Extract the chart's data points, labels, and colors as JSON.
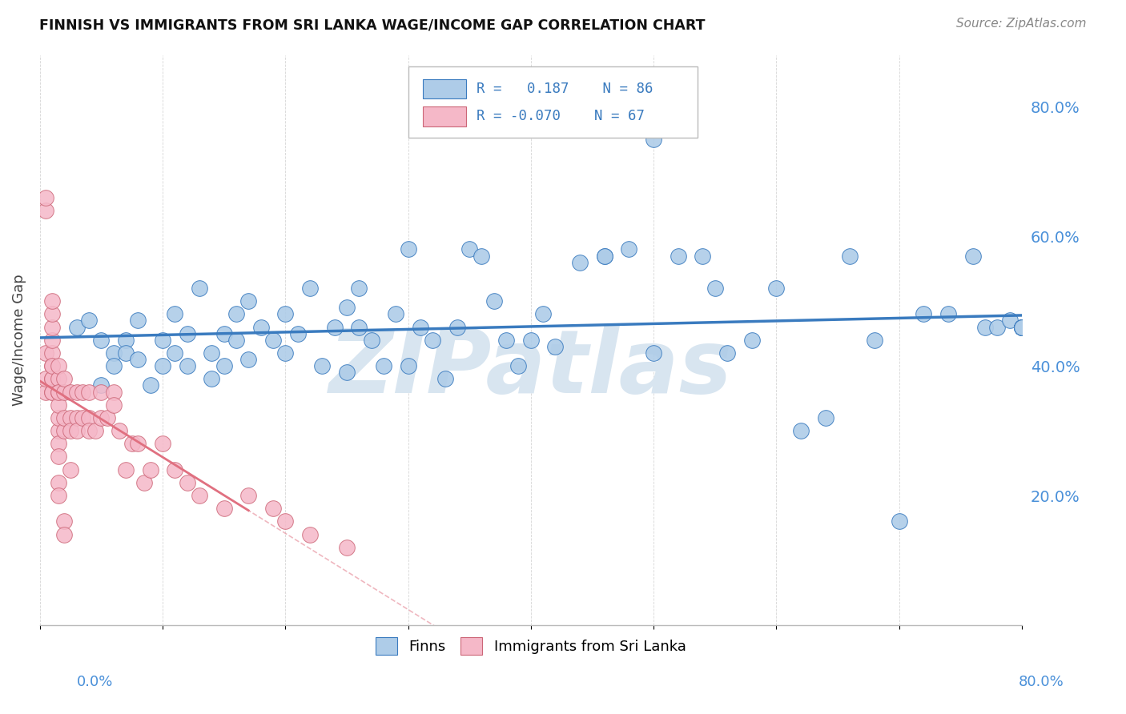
{
  "title": "FINNISH VS IMMIGRANTS FROM SRI LANKA WAGE/INCOME GAP CORRELATION CHART",
  "source": "Source: ZipAtlas.com",
  "ylabel": "Wage/Income Gap",
  "xlim": [
    0.0,
    0.8
  ],
  "ylim": [
    0.0,
    0.88
  ],
  "yticks_right": [
    0.2,
    0.4,
    0.6,
    0.8
  ],
  "ytick_labels_right": [
    "20.0%",
    "40.0%",
    "60.0%",
    "80.0%"
  ],
  "xticks": [
    0.0,
    0.1,
    0.2,
    0.3,
    0.4,
    0.5,
    0.6,
    0.7,
    0.8
  ],
  "color_finns": "#aecce8",
  "color_srilanka": "#f5b8c8",
  "trendline_finns": "#3a7bbf",
  "trendline_srilanka": "#e07080",
  "watermark": "ZIPatlas",
  "watermark_color": "#d8e5f0",
  "finns_x": [
    0.03,
    0.04,
    0.05,
    0.05,
    0.06,
    0.06,
    0.07,
    0.07,
    0.08,
    0.08,
    0.09,
    0.1,
    0.1,
    0.11,
    0.11,
    0.12,
    0.12,
    0.13,
    0.14,
    0.14,
    0.15,
    0.15,
    0.16,
    0.16,
    0.17,
    0.17,
    0.18,
    0.19,
    0.2,
    0.2,
    0.21,
    0.22,
    0.23,
    0.24,
    0.25,
    0.25,
    0.26,
    0.26,
    0.27,
    0.28,
    0.29,
    0.3,
    0.3,
    0.31,
    0.32,
    0.33,
    0.34,
    0.35,
    0.36,
    0.37,
    0.38,
    0.39,
    0.4,
    0.41,
    0.42,
    0.44,
    0.46,
    0.46,
    0.48,
    0.5,
    0.5,
    0.52,
    0.54,
    0.55,
    0.56,
    0.58,
    0.6,
    0.62,
    0.64,
    0.66,
    0.68,
    0.7,
    0.72,
    0.74,
    0.76,
    0.77,
    0.78,
    0.79,
    0.8,
    0.8,
    0.8,
    0.8,
    0.8,
    0.8,
    0.8,
    0.8
  ],
  "finns_y": [
    0.46,
    0.47,
    0.44,
    0.37,
    0.42,
    0.4,
    0.44,
    0.42,
    0.47,
    0.41,
    0.37,
    0.44,
    0.4,
    0.48,
    0.42,
    0.4,
    0.45,
    0.52,
    0.42,
    0.38,
    0.45,
    0.4,
    0.48,
    0.44,
    0.5,
    0.41,
    0.46,
    0.44,
    0.48,
    0.42,
    0.45,
    0.52,
    0.4,
    0.46,
    0.49,
    0.39,
    0.52,
    0.46,
    0.44,
    0.4,
    0.48,
    0.58,
    0.4,
    0.46,
    0.44,
    0.38,
    0.46,
    0.58,
    0.57,
    0.5,
    0.44,
    0.4,
    0.44,
    0.48,
    0.43,
    0.56,
    0.57,
    0.57,
    0.58,
    0.75,
    0.42,
    0.57,
    0.57,
    0.52,
    0.42,
    0.44,
    0.52,
    0.3,
    0.32,
    0.57,
    0.44,
    0.16,
    0.48,
    0.48,
    0.57,
    0.46,
    0.46,
    0.47,
    0.46,
    0.46,
    0.46,
    0.46,
    0.46,
    0.46,
    0.46,
    0.46
  ],
  "srilanka_x": [
    0.005,
    0.005,
    0.005,
    0.005,
    0.005,
    0.01,
    0.01,
    0.01,
    0.01,
    0.01,
    0.01,
    0.01,
    0.01,
    0.01,
    0.01,
    0.01,
    0.015,
    0.015,
    0.015,
    0.015,
    0.015,
    0.015,
    0.015,
    0.015,
    0.015,
    0.015,
    0.015,
    0.02,
    0.02,
    0.02,
    0.02,
    0.02,
    0.02,
    0.025,
    0.025,
    0.025,
    0.025,
    0.03,
    0.03,
    0.03,
    0.035,
    0.035,
    0.04,
    0.04,
    0.04,
    0.045,
    0.05,
    0.05,
    0.055,
    0.06,
    0.06,
    0.065,
    0.07,
    0.075,
    0.08,
    0.085,
    0.09,
    0.1,
    0.11,
    0.12,
    0.13,
    0.15,
    0.17,
    0.19,
    0.2,
    0.22,
    0.25
  ],
  "srilanka_y": [
    0.36,
    0.38,
    0.42,
    0.64,
    0.66,
    0.36,
    0.38,
    0.4,
    0.42,
    0.44,
    0.46,
    0.48,
    0.5,
    0.36,
    0.38,
    0.4,
    0.36,
    0.38,
    0.4,
    0.3,
    0.32,
    0.34,
    0.28,
    0.26,
    0.22,
    0.2,
    0.36,
    0.36,
    0.38,
    0.3,
    0.32,
    0.16,
    0.14,
    0.36,
    0.32,
    0.3,
    0.24,
    0.36,
    0.32,
    0.3,
    0.36,
    0.32,
    0.36,
    0.32,
    0.3,
    0.3,
    0.36,
    0.32,
    0.32,
    0.36,
    0.34,
    0.3,
    0.24,
    0.28,
    0.28,
    0.22,
    0.24,
    0.28,
    0.24,
    0.22,
    0.2,
    0.18,
    0.2,
    0.18,
    0.16,
    0.14,
    0.12
  ]
}
